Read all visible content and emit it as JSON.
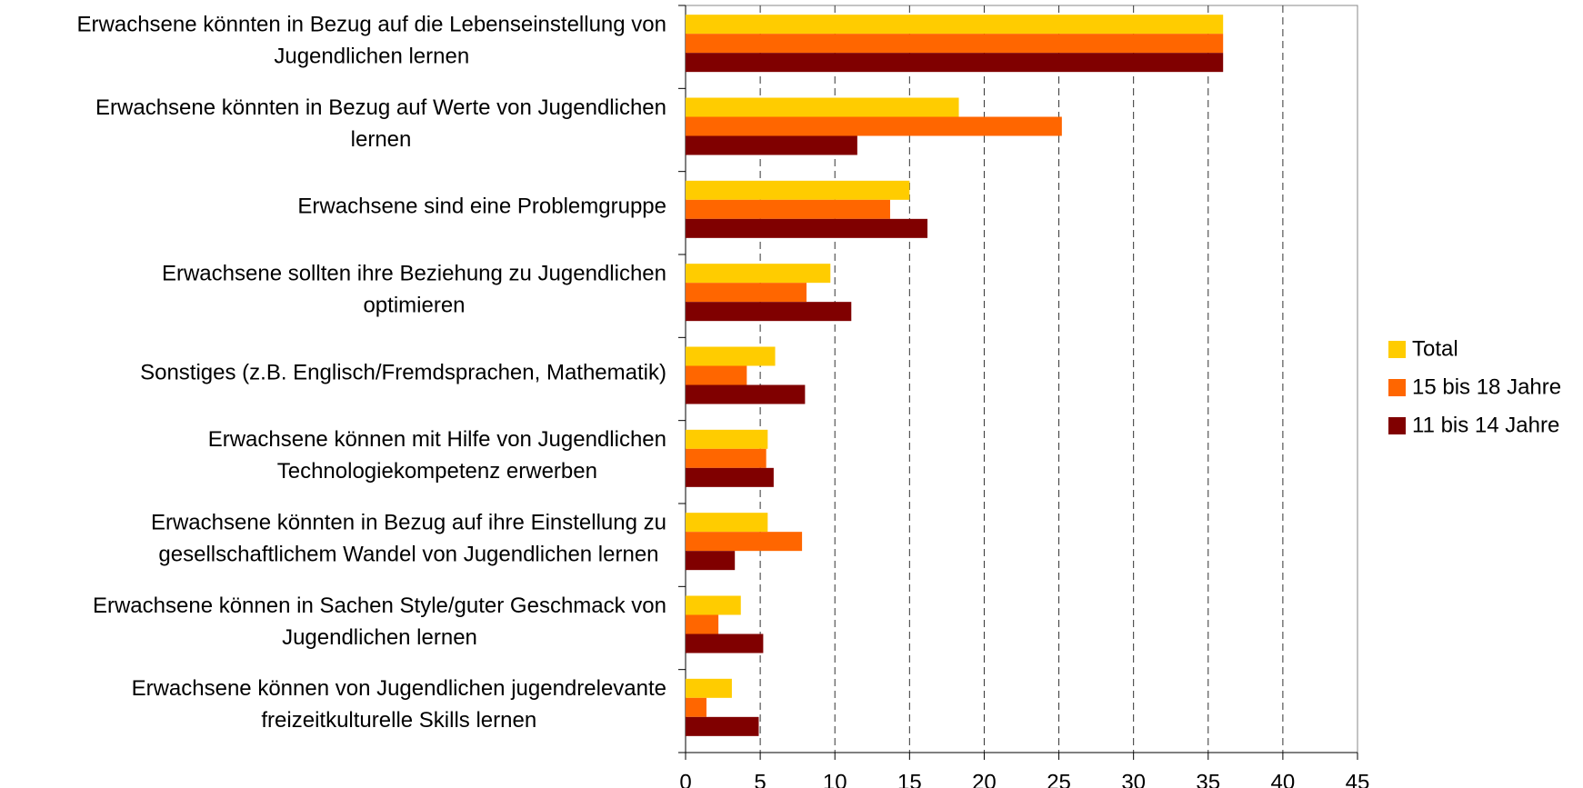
{
  "chart_data": {
    "type": "bar",
    "orientation": "horizontal",
    "categories": [
      [
        "Erwachsene könnten in Bezug auf die Lebenseinstellung von",
        "Jugendlichen lernen"
      ],
      [
        "Erwachsene könnten in Bezug auf Werte von Jugendlichen",
        "lernen"
      ],
      [
        "Erwachsene sind eine Problemgruppe"
      ],
      [
        "Erwachsene sollten ihre Beziehung zu Jugendlichen",
        "optimieren"
      ],
      [
        "Sonstiges (z.B. Englisch/Fremdsprachen, Mathematik)"
      ],
      [
        "Erwachsene können mit Hilfe von Jugendlichen",
        "Technologiekompetenz erwerben"
      ],
      [
        "Erwachsene könnten in Bezug auf ihre Einstellung zu",
        "gesellschaftlichem Wandel von Jugendlichen lernen"
      ],
      [
        "Erwachsene können in Sachen Style/guter Geschmack von",
        "Jugendlichen lernen"
      ],
      [
        "Erwachsene können von Jugendlichen jugendrelevante",
        "freizeitkulturelle Skills lernen"
      ]
    ],
    "series": [
      {
        "name": "Total",
        "color": "#ffcc00",
        "values": [
          36,
          18.3,
          15.0,
          9.7,
          6.0,
          5.5,
          5.5,
          3.7,
          3.1
        ]
      },
      {
        "name": "15 bis 18 Jahre",
        "color": "#ff6600",
        "values": [
          36,
          25.2,
          13.7,
          8.1,
          4.1,
          5.4,
          7.8,
          2.2,
          1.4
        ]
      },
      {
        "name": "11 bis 14 Jahre",
        "color": "#800000",
        "values": [
          36,
          11.5,
          16.2,
          11.1,
          8.0,
          5.9,
          3.3,
          5.2,
          4.9
        ]
      }
    ],
    "xlim": [
      0,
      45
    ],
    "xticks": [
      0,
      5,
      10,
      15,
      20,
      25,
      30,
      35,
      40,
      45
    ],
    "grid": true,
    "legend": "right"
  }
}
